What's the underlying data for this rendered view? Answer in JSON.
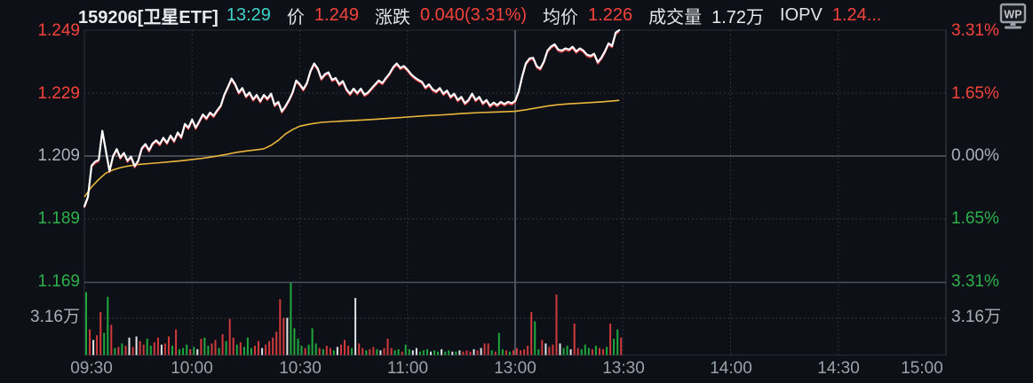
{
  "header": {
    "code_name": "159206[卫星ETF]",
    "time": "13:29",
    "price_label": "价",
    "price_value": "1.249",
    "change_label": "涨跌",
    "change_value": "0.040(3.31%)",
    "avg_label": "均价",
    "avg_value": "1.226",
    "volume_label": "成交量",
    "volume_value": "1.72万",
    "iopv_label": "IOPV",
    "iopv_value": "1.24...",
    "logo_text": "WP"
  },
  "axis_left": [
    {
      "text": "1.249",
      "color": "#f5433b"
    },
    {
      "text": "1.229",
      "color": "#f5433b"
    },
    {
      "text": "1.209",
      "color": "#a9b0ba"
    },
    {
      "text": "1.189",
      "color": "#2db14c"
    },
    {
      "text": "1.169",
      "color": "#2db14c"
    },
    {
      "text": "3.16万",
      "color": "#a9b0ba"
    }
  ],
  "axis_right": [
    {
      "text": "3.31%",
      "color": "#f5433b"
    },
    {
      "text": "1.65%",
      "color": "#f5433b"
    },
    {
      "text": "0.00%",
      "color": "#a9b0ba"
    },
    {
      "text": "1.65%",
      "color": "#2db14c"
    },
    {
      "text": "3.31%",
      "color": "#2db14c"
    },
    {
      "text": "3.16万",
      "color": "#a9b0ba"
    }
  ],
  "axis_bottom": [
    "09:30",
    "10:00",
    "10:30",
    "11:00",
    "13:00",
    "13:30",
    "14:00",
    "14:30",
    "15:00"
  ],
  "chart_data": {
    "type": "line",
    "title": "159206 卫星ETF 分时走势 (intraday)",
    "current_time": "13:29",
    "prev_close": 1.209,
    "last_price": 1.249,
    "change": "+0.040 (+3.31%)",
    "avg_price": 1.226,
    "turnover": "1.72万",
    "x_axis": {
      "labels": [
        "09:30",
        "10:00",
        "10:30",
        "11:00",
        "13:00",
        "13:30",
        "14:00",
        "14:30",
        "15:00"
      ],
      "total_minutes": 240,
      "traded_minutes": 149,
      "break_at_minute": 120
    },
    "y_axis": {
      "price_ticks": [
        1.249,
        1.229,
        1.209,
        1.189,
        1.169
      ],
      "pct_ticks": [
        "3.31%",
        "1.65%",
        "0.00%",
        "-1.65%",
        "-3.31%"
      ],
      "volume_tick_wan": 3.16,
      "grid": "dotted"
    },
    "colors": {
      "up": "#f5433b",
      "down": "#2db14c",
      "price_line": "#ffffff",
      "price_shadow": "#e23b3e",
      "avg_line": "#eab73c",
      "vol_up": "#d03a3c",
      "vol_down": "#1fa83d",
      "vol_flat": "#e2e4e6"
    },
    "price_series_by_minute": [
      1.193,
      1.196,
      1.206,
      1.2072,
      1.2078,
      1.217,
      1.2105,
      1.2042,
      1.209,
      1.2112,
      1.2085,
      1.21,
      1.2075,
      1.2088,
      1.2058,
      1.2075,
      1.2115,
      1.2128,
      1.2108,
      1.213,
      1.214,
      1.2128,
      1.2148,
      1.2132,
      1.2155,
      1.2138,
      1.2165,
      1.215,
      1.2192,
      1.218,
      1.2206,
      1.218,
      1.22,
      1.2222,
      1.221,
      1.2228,
      1.2218,
      1.2235,
      1.225,
      1.2285,
      1.231,
      1.2336,
      1.2318,
      1.2292,
      1.2306,
      1.228,
      1.2292,
      1.227,
      1.2284,
      1.2264,
      1.2284,
      1.2272,
      1.2288,
      1.2252,
      1.2262,
      1.2232,
      1.2248,
      1.2268,
      1.2292,
      1.233,
      1.2318,
      1.2302,
      1.2322,
      1.236,
      1.2384,
      1.2368,
      1.2336,
      1.235,
      1.2356,
      1.2332,
      1.2338,
      1.2318,
      1.2328,
      1.2302,
      1.2288,
      1.2304,
      1.229,
      1.2304,
      1.2285,
      1.2292,
      1.2305,
      1.2318,
      1.233,
      1.2322,
      1.2338,
      1.2352,
      1.2372,
      1.2384,
      1.237,
      1.2376,
      1.2364,
      1.235,
      1.234,
      1.2332,
      1.2326,
      1.2308,
      1.2318,
      1.2302,
      1.2295,
      1.2306,
      1.2288,
      1.2298,
      1.2278,
      1.2288,
      1.2268,
      1.2278,
      1.2258,
      1.2268,
      1.2288,
      1.2268,
      1.2278,
      1.2258,
      1.2268,
      1.225,
      1.226,
      1.2252,
      1.2262,
      1.2255,
      1.2262,
      1.2258,
      1.2265,
      1.2295,
      1.2345,
      1.2385,
      1.24,
      1.2402,
      1.2375,
      1.2368,
      1.239,
      1.2425,
      1.2438,
      1.2445,
      1.2428,
      1.2425,
      1.2432,
      1.2428,
      1.2437,
      1.2422,
      1.2432,
      1.2425,
      1.2412,
      1.2408,
      1.2415,
      1.2388,
      1.2402,
      1.2422,
      1.2448,
      1.244,
      1.2482,
      1.249
    ],
    "avg_series_points": [
      [
        0,
        1.196
      ],
      [
        2,
        1.1992
      ],
      [
        4,
        1.2016
      ],
      [
        6,
        1.2036
      ],
      [
        8,
        1.2046
      ],
      [
        10,
        1.2053
      ],
      [
        12,
        1.2058
      ],
      [
        15,
        1.2063
      ],
      [
        18,
        1.2066
      ],
      [
        21,
        1.2069
      ],
      [
        24,
        1.2072
      ],
      [
        27,
        1.2075
      ],
      [
        30,
        1.2079
      ],
      [
        33,
        1.2083
      ],
      [
        36,
        1.2088
      ],
      [
        39,
        1.2094
      ],
      [
        42,
        1.2101
      ],
      [
        45,
        1.2106
      ],
      [
        48,
        1.211
      ],
      [
        50,
        1.2113
      ],
      [
        52,
        1.2124
      ],
      [
        54,
        1.214
      ],
      [
        56,
        1.216
      ],
      [
        58,
        1.2174
      ],
      [
        60,
        1.2185
      ],
      [
        63,
        1.2192
      ],
      [
        66,
        1.2197
      ],
      [
        70,
        1.22
      ],
      [
        75,
        1.2203
      ],
      [
        80,
        1.2206
      ],
      [
        85,
        1.221
      ],
      [
        90,
        1.2214
      ],
      [
        95,
        1.2218
      ],
      [
        100,
        1.2221
      ],
      [
        105,
        1.2225
      ],
      [
        110,
        1.2228
      ],
      [
        115,
        1.223
      ],
      [
        120,
        1.2232
      ],
      [
        123,
        1.2237
      ],
      [
        126,
        1.2243
      ],
      [
        129,
        1.2249
      ],
      [
        132,
        1.2253
      ],
      [
        135,
        1.2256
      ],
      [
        138,
        1.2258
      ],
      [
        141,
        1.226
      ],
      [
        144,
        1.2262
      ],
      [
        147,
        1.2265
      ],
      [
        149,
        1.2267
      ]
    ],
    "volume_bars_wan_by_minute": [
      [
        5.4,
        "g"
      ],
      [
        2.2,
        "r"
      ],
      [
        1.3,
        "w"
      ],
      [
        1.7,
        "r"
      ],
      [
        3.7,
        "r"
      ],
      [
        1.9,
        "g"
      ],
      [
        5.0,
        "g"
      ],
      [
        2.6,
        "r"
      ],
      [
        0.6,
        "g"
      ],
      [
        0.7,
        "r"
      ],
      [
        1.0,
        "g"
      ],
      [
        0.8,
        "r"
      ],
      [
        1.5,
        "w"
      ],
      [
        0.7,
        "r"
      ],
      [
        1.6,
        "w"
      ],
      [
        1.2,
        "r"
      ],
      [
        0.9,
        "r"
      ],
      [
        1.4,
        "g"
      ],
      [
        0.8,
        "g"
      ],
      [
        1.1,
        "r"
      ],
      [
        1.5,
        "r"
      ],
      [
        0.9,
        "w"
      ],
      [
        1.0,
        "r"
      ],
      [
        1.6,
        "r"
      ],
      [
        0.8,
        "g"
      ],
      [
        2.2,
        "r"
      ],
      [
        0.5,
        "g"
      ],
      [
        0.6,
        "g"
      ],
      [
        0.9,
        "g"
      ],
      [
        0.5,
        "r"
      ],
      [
        0.7,
        "g"
      ],
      [
        0.5,
        "w"
      ],
      [
        1.4,
        "r"
      ],
      [
        1.5,
        "g"
      ],
      [
        0.8,
        "g"
      ],
      [
        1.0,
        "r"
      ],
      [
        1.3,
        "r"
      ],
      [
        0.6,
        "g"
      ],
      [
        1.8,
        "r"
      ],
      [
        1.2,
        "g"
      ],
      [
        3.1,
        "r"
      ],
      [
        1.5,
        "r"
      ],
      [
        0.9,
        "g"
      ],
      [
        1.1,
        "r"
      ],
      [
        0.7,
        "g"
      ],
      [
        1.5,
        "g"
      ],
      [
        0.6,
        "g"
      ],
      [
        0.8,
        "r"
      ],
      [
        1.2,
        "r"
      ],
      [
        0.6,
        "w"
      ],
      [
        0.9,
        "r"
      ],
      [
        1.2,
        "r"
      ],
      [
        1.5,
        "r"
      ],
      [
        2.0,
        "r"
      ],
      [
        4.8,
        "r"
      ],
      [
        3.2,
        "r"
      ],
      [
        3.2,
        "w"
      ],
      [
        6.2,
        "g"
      ],
      [
        2.3,
        "g"
      ],
      [
        1.4,
        "g"
      ],
      [
        0.8,
        "g"
      ],
      [
        0.6,
        "r"
      ],
      [
        0.9,
        "g"
      ],
      [
        2.3,
        "g"
      ],
      [
        1.0,
        "g"
      ],
      [
        0.6,
        "r"
      ],
      [
        0.5,
        "g"
      ],
      [
        0.8,
        "r"
      ],
      [
        0.6,
        "r"
      ],
      [
        0.4,
        "g"
      ],
      [
        0.7,
        "w"
      ],
      [
        0.9,
        "r"
      ],
      [
        1.3,
        "r"
      ],
      [
        0.8,
        "r"
      ],
      [
        0.6,
        "g"
      ],
      [
        4.9,
        "w"
      ],
      [
        1.0,
        "r"
      ],
      [
        0.6,
        "r"
      ],
      [
        0.4,
        "g"
      ],
      [
        0.5,
        "r"
      ],
      [
        0.7,
        "r"
      ],
      [
        0.5,
        "g"
      ],
      [
        0.4,
        "w"
      ],
      [
        0.6,
        "r"
      ],
      [
        1.4,
        "r"
      ],
      [
        0.6,
        "r"
      ],
      [
        0.4,
        "g"
      ],
      [
        0.5,
        "g"
      ],
      [
        0.3,
        "r"
      ],
      [
        0.9,
        "g"
      ],
      [
        0.5,
        "g"
      ],
      [
        0.4,
        "w"
      ],
      [
        0.6,
        "w"
      ],
      [
        0.3,
        "g"
      ],
      [
        0.4,
        "g"
      ],
      [
        0.5,
        "g"
      ],
      [
        0.3,
        "w"
      ],
      [
        0.4,
        "g"
      ],
      [
        0.3,
        "g"
      ],
      [
        0.5,
        "w"
      ],
      [
        0.3,
        "g"
      ],
      [
        0.4,
        "g"
      ],
      [
        0.3,
        "w"
      ],
      [
        0.3,
        "g"
      ],
      [
        0.4,
        "w"
      ],
      [
        0.3,
        "r"
      ],
      [
        0.4,
        "r"
      ],
      [
        0.3,
        "r"
      ],
      [
        0.5,
        "w"
      ],
      [
        0.4,
        "r"
      ],
      [
        0.6,
        "w"
      ],
      [
        1.0,
        "r"
      ],
      [
        1.0,
        "r"
      ],
      [
        0.4,
        "g"
      ],
      [
        0.3,
        "r"
      ],
      [
        1.9,
        "g"
      ],
      [
        0.5,
        "g"
      ],
      [
        0.4,
        "r"
      ],
      [
        0.3,
        "g"
      ],
      [
        0.4,
        "r"
      ],
      [
        0.6,
        "r"
      ],
      [
        0.4,
        "r"
      ],
      [
        0.5,
        "r"
      ],
      [
        0.8,
        "r"
      ],
      [
        3.7,
        "r"
      ],
      [
        2.9,
        "g"
      ],
      [
        0.5,
        "g"
      ],
      [
        1.3,
        "r"
      ],
      [
        1.0,
        "w"
      ],
      [
        0.7,
        "r"
      ],
      [
        0.9,
        "r"
      ],
      [
        5.2,
        "r"
      ],
      [
        1.0,
        "w"
      ],
      [
        0.6,
        "g"
      ],
      [
        0.8,
        "g"
      ],
      [
        0.5,
        "w"
      ],
      [
        2.7,
        "r"
      ],
      [
        0.6,
        "r"
      ],
      [
        0.5,
        "g"
      ],
      [
        0.9,
        "g"
      ],
      [
        0.6,
        "g"
      ],
      [
        0.5,
        "r"
      ],
      [
        0.8,
        "g"
      ],
      [
        0.6,
        "r"
      ],
      [
        0.5,
        "r"
      ],
      [
        0.7,
        "g"
      ],
      [
        2.7,
        "r"
      ],
      [
        1.4,
        "g"
      ],
      [
        2.2,
        "g"
      ],
      [
        1.5,
        "r"
      ]
    ]
  }
}
